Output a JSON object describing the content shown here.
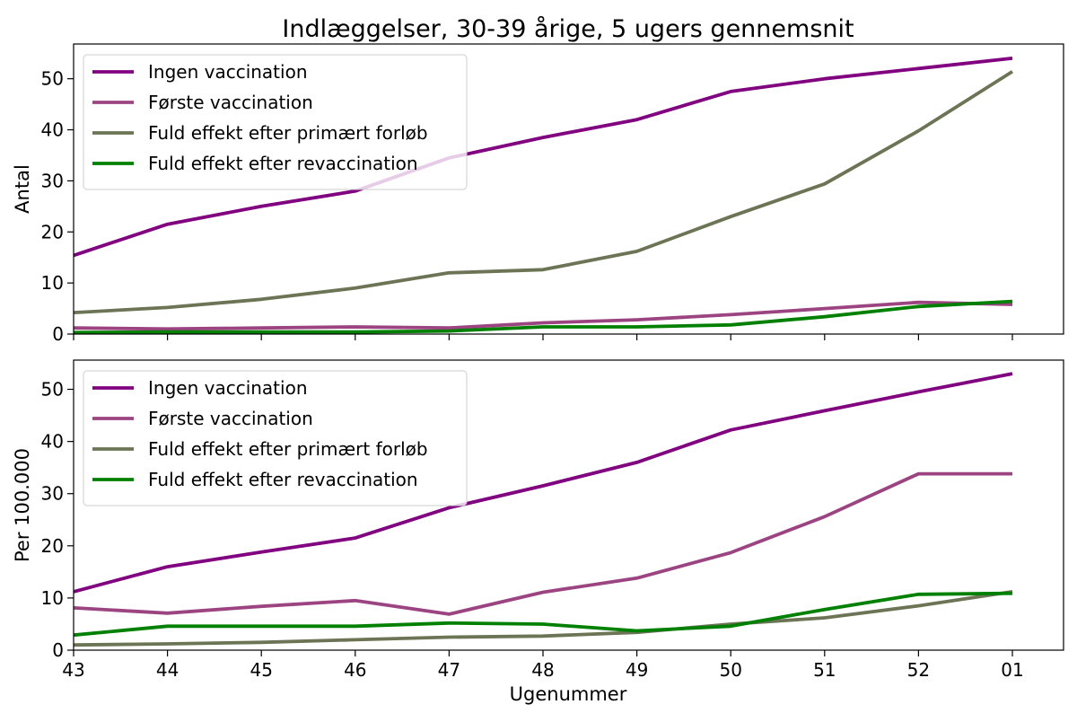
{
  "chart_data": {
    "type": "line",
    "title": "Indlæggelser, 30-39 årige, 5 ugers gennemsnit",
    "xlabel": "Ugenummer",
    "categories": [
      "43",
      "44",
      "45",
      "46",
      "47",
      "48",
      "49",
      "50",
      "51",
      "52",
      "01"
    ],
    "legend_position": "top-left",
    "grid": false,
    "panels": [
      {
        "ylabel": "Antal",
        "ylim": [
          0,
          56.8
        ],
        "yticks": [
          0,
          10,
          20,
          30,
          40,
          50
        ],
        "series": [
          {
            "name": "Ingen vaccination",
            "color": "#800080",
            "values": [
              15.4,
              21.5,
              25.0,
              28.0,
              34.5,
              38.5,
              42.0,
              47.5,
              50.0,
              52.0,
              54.0
            ]
          },
          {
            "name": "Første vaccination",
            "color": "#9c4482",
            "values": [
              1.2,
              1.0,
              1.2,
              1.4,
              1.2,
              2.2,
              2.8,
              3.8,
              5.0,
              6.2,
              5.8
            ]
          },
          {
            "name": "Fuld effekt efter primært forløb",
            "color": "#6b7454",
            "values": [
              4.2,
              5.2,
              6.8,
              9.0,
              12.0,
              12.6,
              16.2,
              23.0,
              29.4,
              39.8,
              51.4
            ]
          },
          {
            "name": "Fuld effekt efter revaccination",
            "color": "#008000",
            "values": [
              0.3,
              0.4,
              0.4,
              0.4,
              0.6,
              1.4,
              1.4,
              1.8,
              3.4,
              5.4,
              6.4
            ]
          }
        ]
      },
      {
        "ylabel": "Per 100.000",
        "ylim": [
          0,
          55.6
        ],
        "yticks": [
          0,
          10,
          20,
          30,
          40,
          50
        ],
        "series": [
          {
            "name": "Ingen vaccination",
            "color": "#800080",
            "values": [
              11.2,
              16.0,
              18.8,
              21.5,
              27.3,
              31.5,
              36.0,
              42.2,
              45.9,
              49.5,
              53.0
            ]
          },
          {
            "name": "Første vaccination",
            "color": "#9c4482",
            "values": [
              8.1,
              7.1,
              8.4,
              9.5,
              6.9,
              11.1,
              13.8,
              18.7,
              25.6,
              33.8,
              33.8
            ]
          },
          {
            "name": "Fuld effekt efter primært forløb",
            "color": "#6b7454",
            "values": [
              1.0,
              1.2,
              1.5,
              2.0,
              2.5,
              2.7,
              3.4,
              5.0,
              6.2,
              8.5,
              11.2
            ]
          },
          {
            "name": "Fuld effekt efter revaccination",
            "color": "#008000",
            "values": [
              2.9,
              4.6,
              4.6,
              4.6,
              5.2,
              5.0,
              3.7,
              4.6,
              7.8,
              10.7,
              10.9
            ]
          }
        ]
      }
    ]
  }
}
